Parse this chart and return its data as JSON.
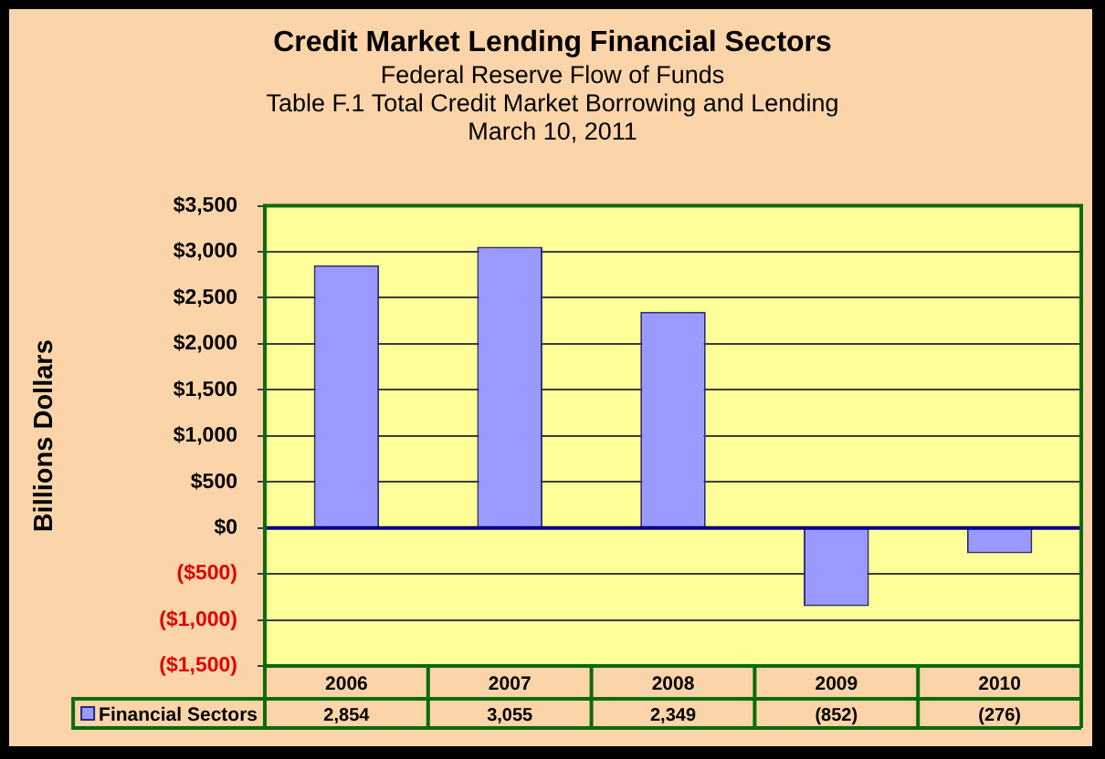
{
  "chart_data": {
    "type": "bar",
    "title": "Credit Market Lending Financial Sectors",
    "subtitle": "Federal Reserve Flow of Funds\nTable F.1 Total Credit Market Borrowing and Lending\nMarch 10, 2011",
    "ylabel": "Billions Dollars",
    "categories": [
      "2006",
      "2007",
      "2008",
      "2009",
      "2010"
    ],
    "series": [
      {
        "name": "Financial Sectors",
        "color": "#9999ff",
        "values": [
          2854,
          3055,
          2349,
          -852,
          -276
        ],
        "value_labels": [
          "2,854",
          "3,055",
          "2,349",
          "(852)",
          "(276)"
        ]
      }
    ],
    "ylim": [
      -1500,
      3500
    ],
    "yticks": [
      {
        "value": -1500,
        "label": "($1,500)"
      },
      {
        "value": -1000,
        "label": "($1,000)"
      },
      {
        "value": -500,
        "label": "($500)"
      },
      {
        "value": 0,
        "label": "$0"
      },
      {
        "value": 500,
        "label": "$500"
      },
      {
        "value": 1000,
        "label": "$1,000"
      },
      {
        "value": 1500,
        "label": "$1,500"
      },
      {
        "value": 2000,
        "label": "$2,000"
      },
      {
        "value": 2500,
        "label": "$2,500"
      },
      {
        "value": 3000,
        "label": "$3,000"
      },
      {
        "value": 3500,
        "label": "$3,500"
      }
    ],
    "ref_lines": [
      {
        "axis": "y",
        "value": 0,
        "color": "#000080"
      }
    ],
    "grid": "y",
    "legend": "bottom left"
  }
}
